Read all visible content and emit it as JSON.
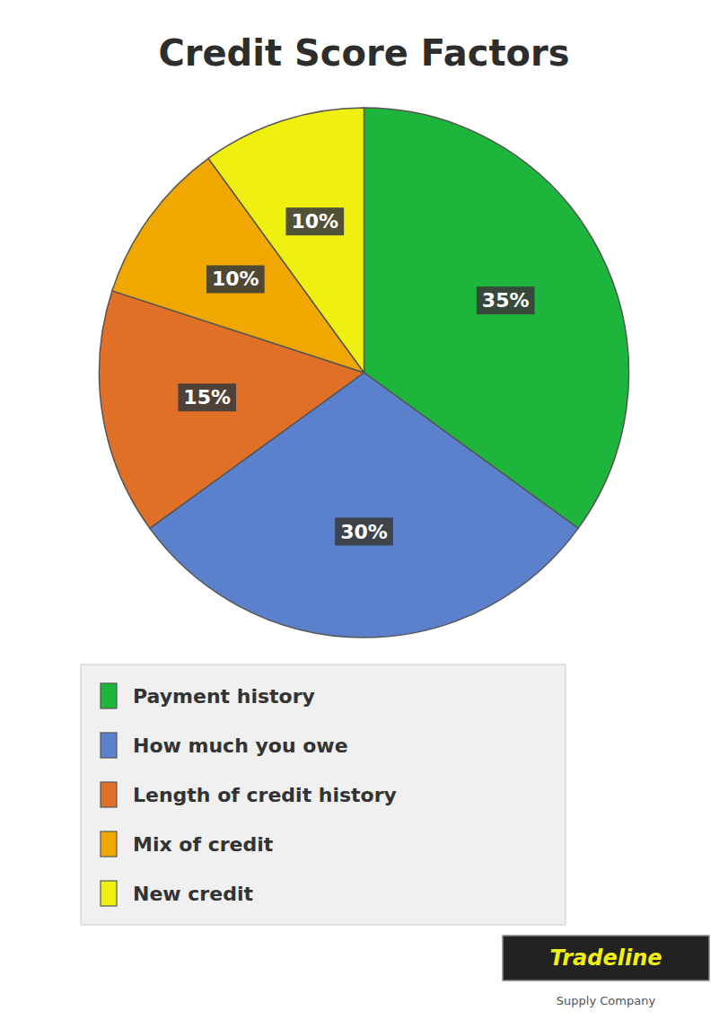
{
  "chart_data": {
    "type": "pie",
    "title": "Credit Score Factors",
    "categories": [
      "Payment history",
      "How much you owe",
      "Length of credit history",
      "Mix of credit",
      "New credit"
    ],
    "values": [
      35,
      30,
      15,
      10,
      10
    ],
    "value_labels": [
      "35%",
      "30%",
      "15%",
      "10%",
      "10%"
    ],
    "colors": [
      "#1db53c",
      "#5b80cc",
      "#e07028",
      "#f0a800",
      "#f0f010"
    ],
    "data_labels": true,
    "legend": "bottom",
    "annotations": [
      "Tradeline",
      "Supply Company"
    ]
  }
}
